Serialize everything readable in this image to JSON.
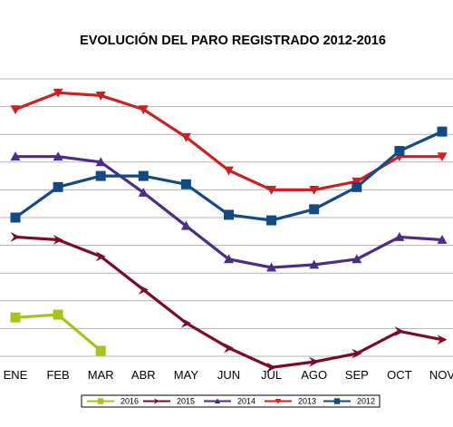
{
  "chart_data": {
    "type": "line",
    "title": "EVOLUCIÓN DEL PARO REGISTRADO 2012-2016",
    "xlabel": "",
    "ylabel": "",
    "categories": [
      "ENE",
      "FEB",
      "MAR",
      "ABR",
      "MAY",
      "JUN",
      "JUL",
      "AGO",
      "SEP",
      "OCT",
      "NOV"
    ],
    "ylim": [
      0,
      10
    ],
    "grid": true,
    "legend_position": "bottom",
    "series": [
      {
        "name": "2016",
        "color": "#a6c51c",
        "marker": "square",
        "values": [
          1.4,
          1.5,
          0.2,
          null,
          null,
          null,
          null,
          null,
          null,
          null,
          null
        ]
      },
      {
        "name": "2015",
        "color": "#7b0b26",
        "marker": "arrow",
        "values": [
          4.3,
          4.2,
          3.6,
          2.4,
          1.2,
          0.3,
          -0.4,
          -0.2,
          0.1,
          0.9,
          0.6
        ]
      },
      {
        "name": "2014",
        "color": "#4b2c86",
        "marker": "triangle",
        "values": [
          7.2,
          7.2,
          7.0,
          5.9,
          4.7,
          3.5,
          3.2,
          3.3,
          3.5,
          4.3,
          4.2
        ]
      },
      {
        "name": "2013",
        "color": "#cc2121",
        "marker": "triangle-down",
        "values": [
          8.9,
          9.5,
          9.4,
          8.9,
          7.9,
          6.7,
          6.0,
          6.0,
          6.3,
          7.2,
          7.2
        ]
      },
      {
        "name": "2012",
        "color": "#134a85",
        "marker": "square",
        "values": [
          5.0,
          6.1,
          6.5,
          6.5,
          6.2,
          5.1,
          4.9,
          5.3,
          6.1,
          7.4,
          8.1
        ]
      }
    ]
  }
}
